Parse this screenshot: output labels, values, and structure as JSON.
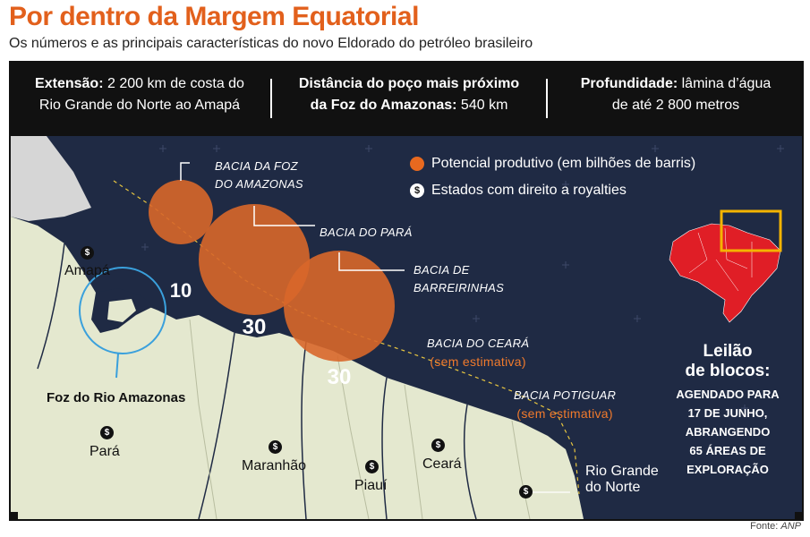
{
  "title": "Por dentro da Margem Equatorial",
  "subtitle": "Os números e as principais características do novo Eldorado do petróleo brasileiro",
  "header": {
    "extensao_label": "Extensão:",
    "extensao_text_1": "2 200 km de costa do",
    "extensao_text_2": "Rio Grande do Norte ao Amapá",
    "distancia_label_1": "Distância do poço mais próximo",
    "distancia_label_2": "da Foz do Amazonas:",
    "distancia_value": "540 km",
    "profundidade_label": "Profundidade:",
    "profundidade_text_1": "lâmina d’água",
    "profundidade_text_2": "de até 2 800 metros"
  },
  "legend": {
    "potencial": "Potencial produtivo (em bilhões de barris)",
    "royalties": "Estados com direito a royalties",
    "royalty_symbol": "$"
  },
  "basins": [
    {
      "name_1": "BACIA DA FOZ",
      "name_2": "DO AMAZONAS",
      "value": "10"
    },
    {
      "name_1": "BACIA DO PARÁ",
      "name_2": "",
      "value": "30"
    },
    {
      "name_1": "BACIA DE",
      "name_2": "BARREIRINHAS",
      "value": "30"
    },
    {
      "name_1": "BACIA DO CEARÁ",
      "name_2": "(sem estimativa)",
      "value": ""
    },
    {
      "name_1": "BACIA POTIGUAR",
      "name_2": "(sem estimativa)",
      "value": ""
    }
  ],
  "states": {
    "amapa": "Amapá",
    "para": "Pará",
    "maranhao": "Maranhão",
    "piaui": "Piauí",
    "ceara": "Ceará",
    "rn_1": "Rio Grande",
    "rn_2": "do Norte"
  },
  "foz_label": "Foz do Rio Amazonas",
  "leilao": {
    "title_1": "Leilão",
    "title_2": "de blocos:",
    "lines": [
      "AGENDADO PARA",
      "17 DE JUNHO,",
      "ABRANGENDO",
      "65 ÁREAS DE",
      "EXPLORAÇÃO"
    ]
  },
  "source_label": "Fonte:",
  "source_value": "ANP",
  "colors": {
    "ocean": "#1f2a44",
    "land": "#e4e8cf",
    "circle": "#d8672a",
    "accent": "#e2601c",
    "brazil": "#e01e26",
    "highlight_box": "#f4b400",
    "foz_circle": "#3aa0dc"
  }
}
